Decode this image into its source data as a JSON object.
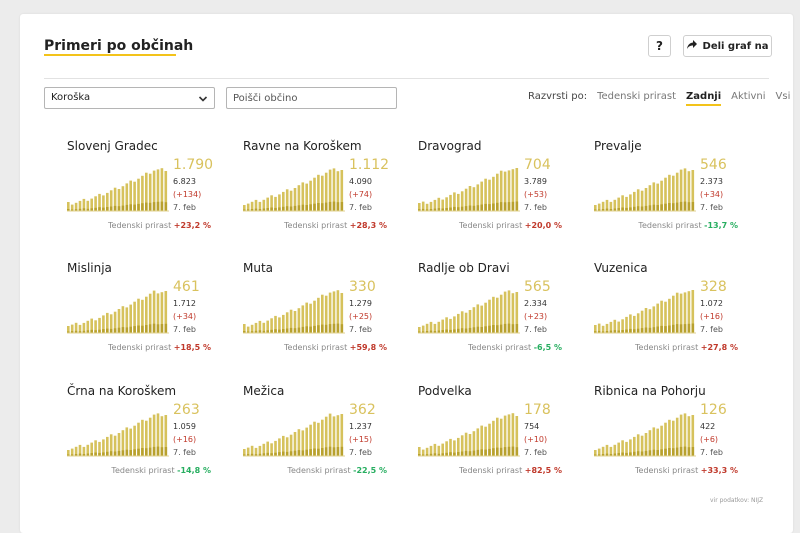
{
  "header": {
    "title": "Primeri po občinah",
    "help_label": "?",
    "share_label": "Deli graf na"
  },
  "filters": {
    "region_value": "Koroška",
    "search_placeholder": "Poišči občino"
  },
  "sort": {
    "label": "Razvrsti po:",
    "options": [
      "Tedenski prirast",
      "Zadnji",
      "Aktivni",
      "Vsi"
    ],
    "active": "Zadnji"
  },
  "growth_label": "Tedenski prirast",
  "colors": {
    "accent": "#f3c31a",
    "bar": "#d6c25c",
    "bar_dark": "#b8a12e",
    "positive": "#c0392b",
    "negative": "#27ae60"
  },
  "municipalities": [
    {
      "name": "Slovenj Gradec",
      "total": "1.790",
      "active": "6.823",
      "delta": "(+134)",
      "date": "7. feb",
      "growth": "+23,2 %",
      "growth_sign": "pos"
    },
    {
      "name": "Ravne na Koroškem",
      "total": "1.112",
      "active": "4.090",
      "delta": "(+74)",
      "date": "7. feb",
      "growth": "+28,3 %",
      "growth_sign": "pos"
    },
    {
      "name": "Dravograd",
      "total": "704",
      "active": "3.789",
      "delta": "(+53)",
      "date": "7. feb",
      "growth": "+20,0 %",
      "growth_sign": "pos"
    },
    {
      "name": "Prevalje",
      "total": "546",
      "active": "2.373",
      "delta": "(+34)",
      "date": "7. feb",
      "growth": "-13,7 %",
      "growth_sign": "neg"
    },
    {
      "name": "Mislinja",
      "total": "461",
      "active": "1.712",
      "delta": "(+34)",
      "date": "7. feb",
      "growth": "+18,5 %",
      "growth_sign": "pos"
    },
    {
      "name": "Muta",
      "total": "330",
      "active": "1.279",
      "delta": "(+25)",
      "date": "7. feb",
      "growth": "+59,8 %",
      "growth_sign": "pos"
    },
    {
      "name": "Radlje ob Dravi",
      "total": "565",
      "active": "2.334",
      "delta": "(+23)",
      "date": "7. feb",
      "growth": "-6,5 %",
      "growth_sign": "neg"
    },
    {
      "name": "Vuzenica",
      "total": "328",
      "active": "1.072",
      "delta": "(+16)",
      "date": "7. feb",
      "growth": "+27,8 %",
      "growth_sign": "pos"
    },
    {
      "name": "Črna na Koroškem",
      "total": "263",
      "active": "1.059",
      "delta": "(+16)",
      "date": "7. feb",
      "growth": "-14,8 %",
      "growth_sign": "neg"
    },
    {
      "name": "Mežica",
      "total": "362",
      "active": "1.237",
      "delta": "(+15)",
      "date": "7. feb",
      "growth": "-22,5 %",
      "growth_sign": "neg"
    },
    {
      "name": "Podvelka",
      "total": "178",
      "active": "754",
      "delta": "(+10)",
      "date": "7. feb",
      "growth": "+82,5 %",
      "growth_sign": "pos"
    },
    {
      "name": "Ribnica na Pohorju",
      "total": "126",
      "active": "422",
      "delta": "(+6)",
      "date": "7. feb",
      "growth": "+33,3 %",
      "growth_sign": "pos"
    }
  ],
  "source": "vir podatkov: NIJZ"
}
